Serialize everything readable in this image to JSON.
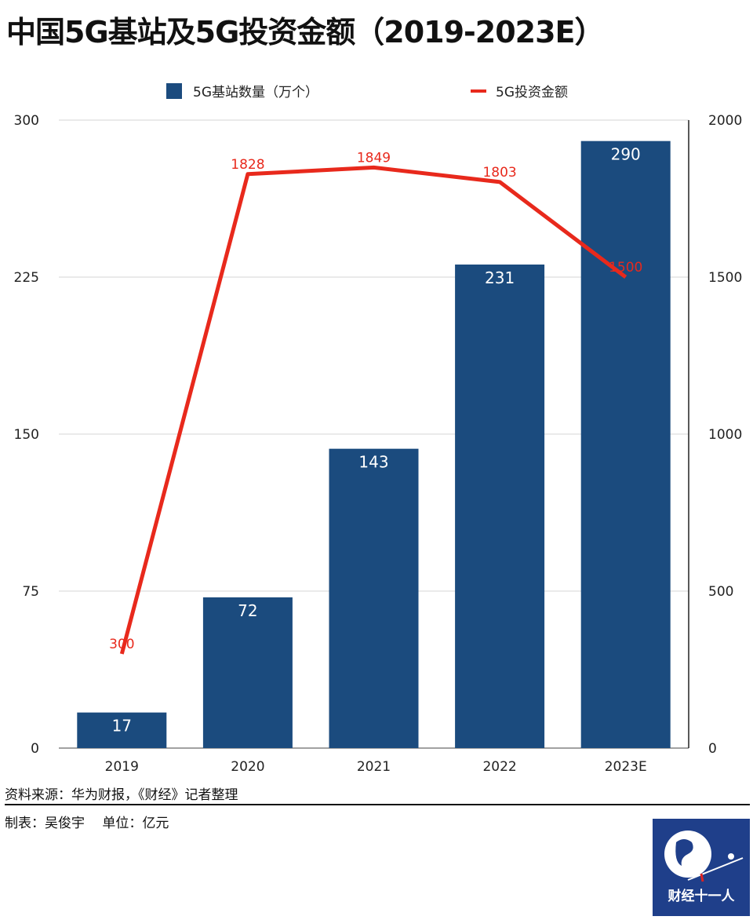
{
  "chart_data": {
    "type": "bar+line",
    "title": "中国5G基站及5G投资金额（2019-2023E）",
    "categories": [
      "2019",
      "2020",
      "2021",
      "2022",
      "2023E"
    ],
    "series": [
      {
        "name": "5G基站数量（万个）",
        "type": "bar",
        "axis": "left",
        "values": [
          17,
          72,
          143,
          231,
          290
        ]
      },
      {
        "name": "5G投资金额",
        "type": "line",
        "axis": "right",
        "values": [
          300,
          1828,
          1849,
          1803,
          1500
        ]
      }
    ],
    "left_axis": {
      "ylim": [
        0,
        300
      ],
      "ticks": [
        "0",
        "75",
        "150",
        "225",
        "300"
      ]
    },
    "right_axis": {
      "ylim": [
        0,
        2000
      ],
      "ticks": [
        "0",
        "500",
        "1000",
        "1500",
        "2000"
      ]
    },
    "legend": "top",
    "grid": true,
    "colors": {
      "bar": "#1b4b7e",
      "line": "#e8291c"
    }
  },
  "footer": {
    "source": "资料来源：华为财报，《财经》记者整理",
    "credit": "制表：吴俊宇　 单位：亿元",
    "logo_text": "财经十一人"
  }
}
